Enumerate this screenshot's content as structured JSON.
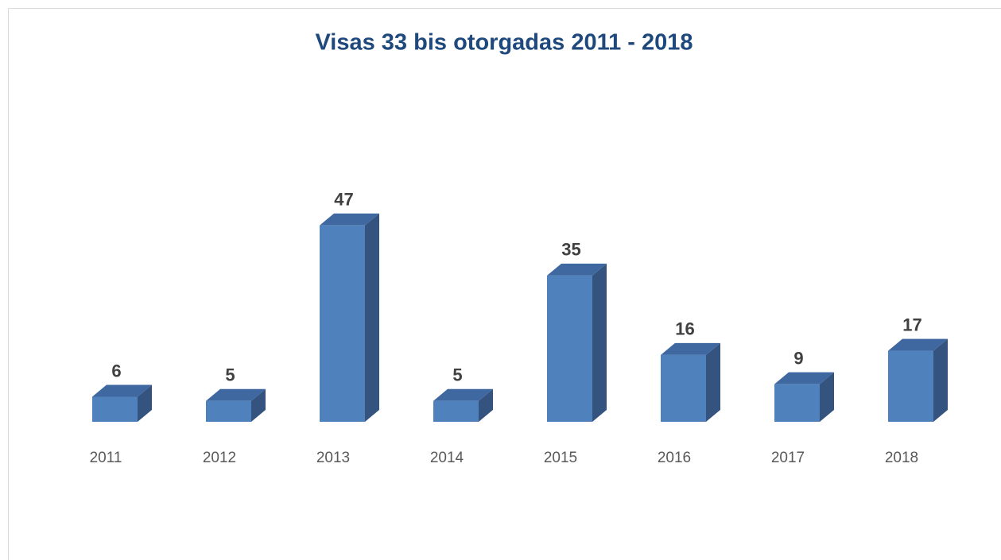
{
  "chart_data": {
    "type": "bar3d",
    "title": "Visas 33 bis otorgadas 2011 - 2018",
    "categories": [
      "2011",
      "2012",
      "2013",
      "2014",
      "2015",
      "2016",
      "2017",
      "2018"
    ],
    "values": [
      6,
      5,
      47,
      5,
      35,
      16,
      9,
      17
    ],
    "color": "#4f81bd"
  }
}
